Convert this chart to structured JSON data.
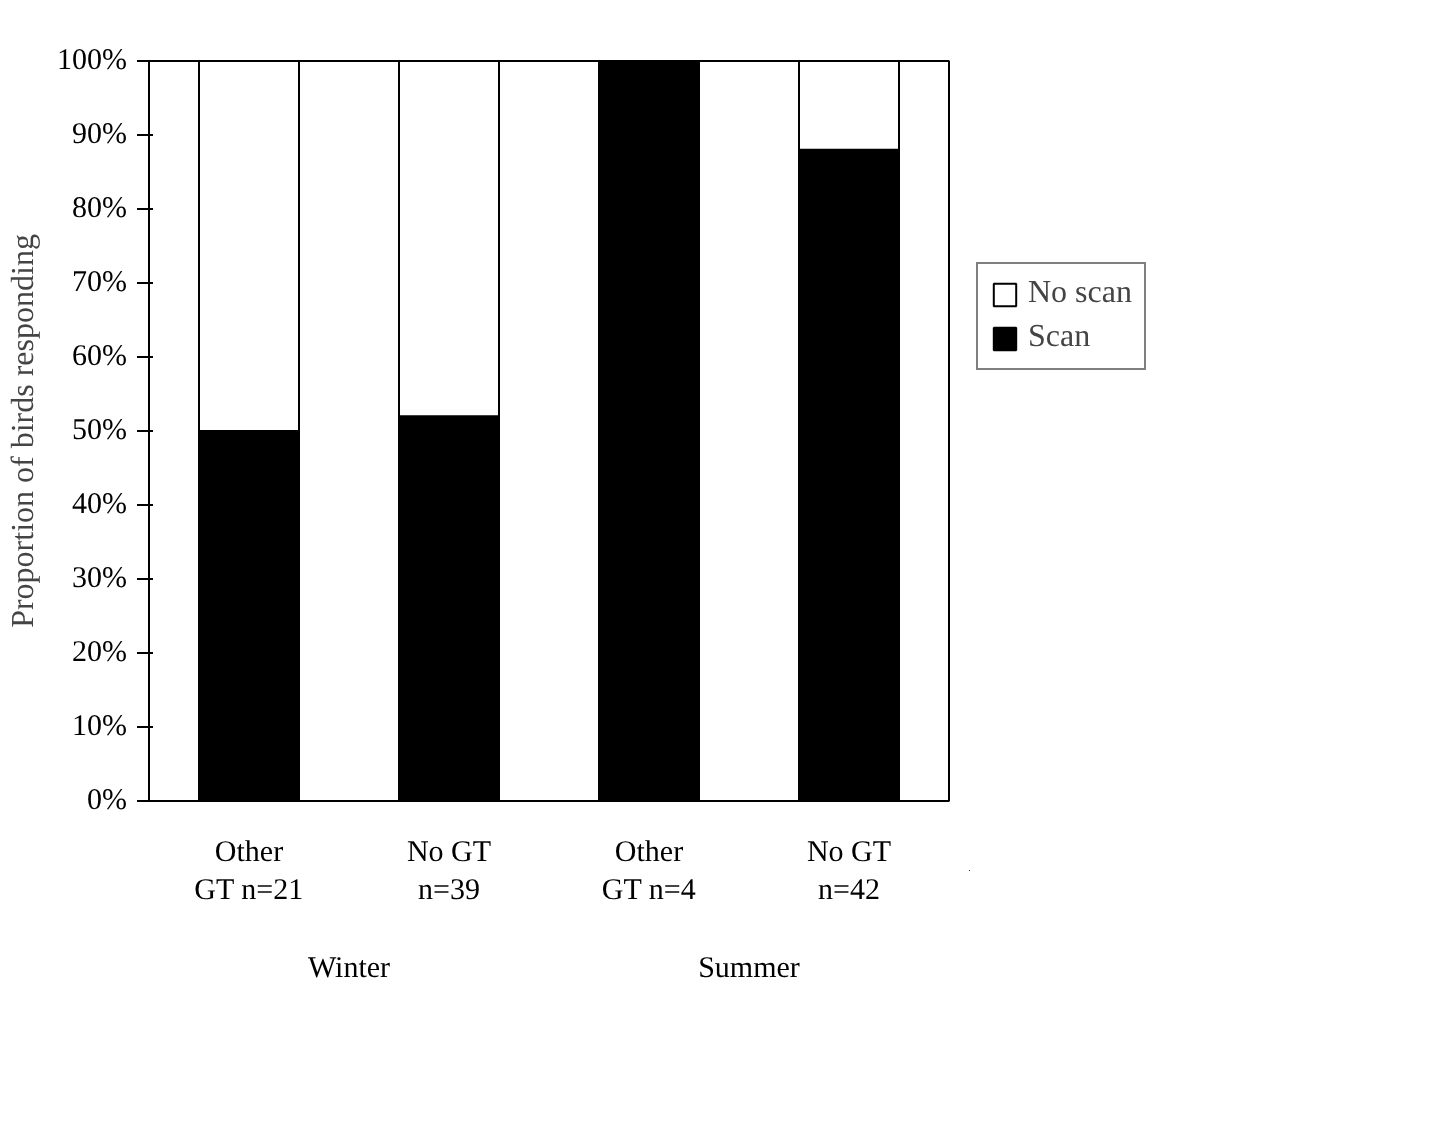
{
  "chart_data": {
    "type": "bar",
    "ylabel": "Proportion of birds responding",
    "stacked": true,
    "categories": [
      "Other\nGT n=21",
      "No GT\nn=39",
      "Other\nGT n=4",
      "No GT\nn=42"
    ],
    "annotations": [
      "Winter",
      "Summer"
    ],
    "series": [
      {
        "name": "Scan",
        "color": "#000000",
        "values": [
          50,
          52,
          100,
          88
        ]
      },
      {
        "name": "No scan",
        "color": "#ffffff",
        "values": [
          50,
          48,
          0,
          12
        ]
      }
    ],
    "ylim": [
      0,
      100
    ],
    "yticks": [
      {
        "value": 0,
        "label": "0%"
      },
      {
        "value": 10,
        "label": "10%"
      },
      {
        "value": 20,
        "label": "20%"
      },
      {
        "value": 30,
        "label": "30%"
      },
      {
        "value": 40,
        "label": "40%"
      },
      {
        "value": 50,
        "label": "50%"
      },
      {
        "value": 60,
        "label": "60%"
      },
      {
        "value": 70,
        "label": "70%"
      },
      {
        "value": 80,
        "label": "80%"
      },
      {
        "value": 90,
        "label": "90%"
      },
      {
        "value": 100,
        "label": "100%"
      }
    ],
    "grid": false,
    "legend": "right"
  }
}
